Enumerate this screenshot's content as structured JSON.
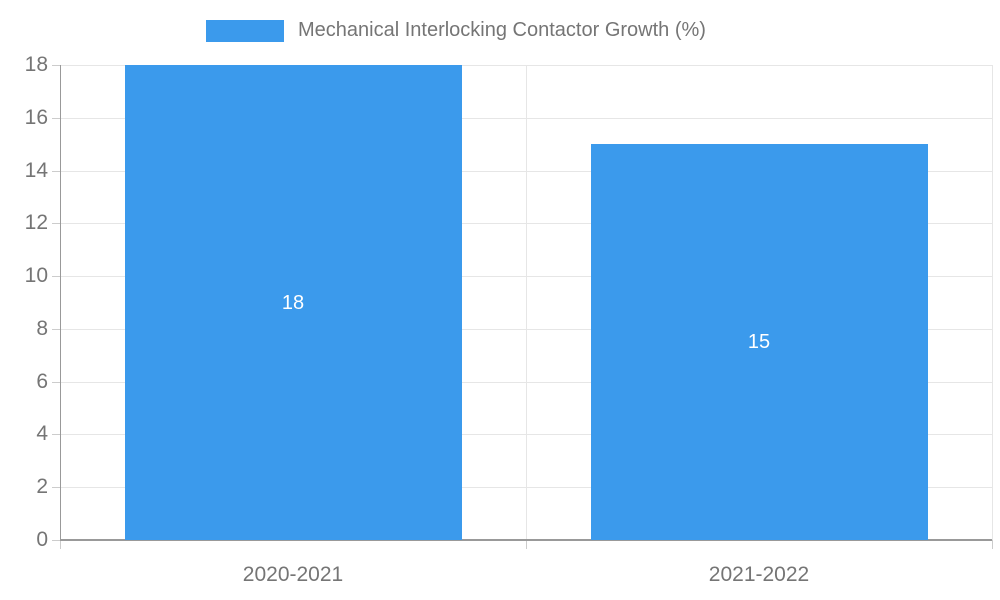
{
  "chart_data": {
    "type": "bar",
    "categories": [
      "2020-2021",
      "2021-2022"
    ],
    "series": [
      {
        "name": "Mechanical Interlocking Contactor Growth (%)",
        "values": [
          18,
          15
        ]
      }
    ],
    "value_labels": [
      "18",
      "15"
    ],
    "title": "",
    "xlabel": "",
    "ylabel": "",
    "ylim": [
      0,
      18
    ],
    "ytick_step": 2,
    "ytick_labels": [
      "0",
      "2",
      "4",
      "6",
      "8",
      "10",
      "12",
      "14",
      "16",
      "18"
    ],
    "grid": true,
    "legend_position": "top",
    "colors": {
      "bar": "#3B9AEC",
      "axis_text": "#757575",
      "gridline": "#E6E6E6",
      "axis_line": "#999999",
      "tick": "#CCCCCC",
      "bar_label": "#FFFFFF",
      "background": "#FFFFFF"
    }
  }
}
